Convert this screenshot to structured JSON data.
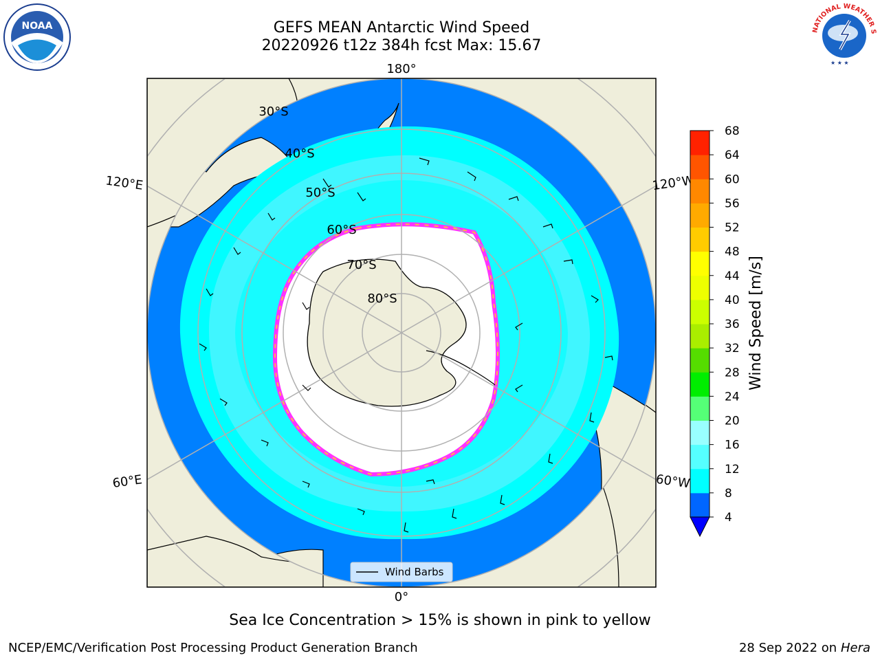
{
  "title_line1": "GEFS MEAN Antarctic Wind Speed",
  "title_line2": "20220926 t12z 384h fcst   Max: 15.67",
  "map": {
    "lon_labels": [
      "180°",
      "120°E",
      "120°W",
      "60°E",
      "60°W",
      "0°"
    ],
    "lat_labels": [
      "30°S",
      "40°S",
      "50°S",
      "60°S",
      "70°S",
      "80°S"
    ]
  },
  "legend": {
    "label": "Wind Barbs"
  },
  "colorbar": {
    "label": "Wind Speed [m/s]",
    "ticks": [
      "4",
      "8",
      "12",
      "16",
      "20",
      "24",
      "28",
      "32",
      "36",
      "40",
      "44",
      "48",
      "52",
      "56",
      "60",
      "64",
      "68"
    ],
    "colors": [
      "#0066ff",
      "#00ffff",
      "#55ffff",
      "#99ffff",
      "#55ff77",
      "#00ee00",
      "#55dd00",
      "#aaee00",
      "#ccff00",
      "#eeff00",
      "#ffff00",
      "#ffcc00",
      "#ffaa00",
      "#ff8800",
      "#ff5500",
      "#ff2200",
      "#ff0000"
    ],
    "under_color": "#0000ff"
  },
  "note": "Sea Ice Concentration > 15% is shown in pink to yellow",
  "credit_left": "NCEP/EMC/Verification Post Processing Product Generation Branch",
  "credit_right_date": "28 Sep 2022 on",
  "credit_right_host": "Hera",
  "logos": {
    "noaa": "NOAA",
    "nws": "NATIONAL WEATHER SERVICE"
  },
  "colors": {
    "land": "#efeedb",
    "ocean_weak": "#0080ff",
    "ocean_mid": "#00ffff",
    "ocean_strong": "#55f3ff",
    "ice_edge": "#ff33ff",
    "ice_yellow": "#ffbb44"
  }
}
